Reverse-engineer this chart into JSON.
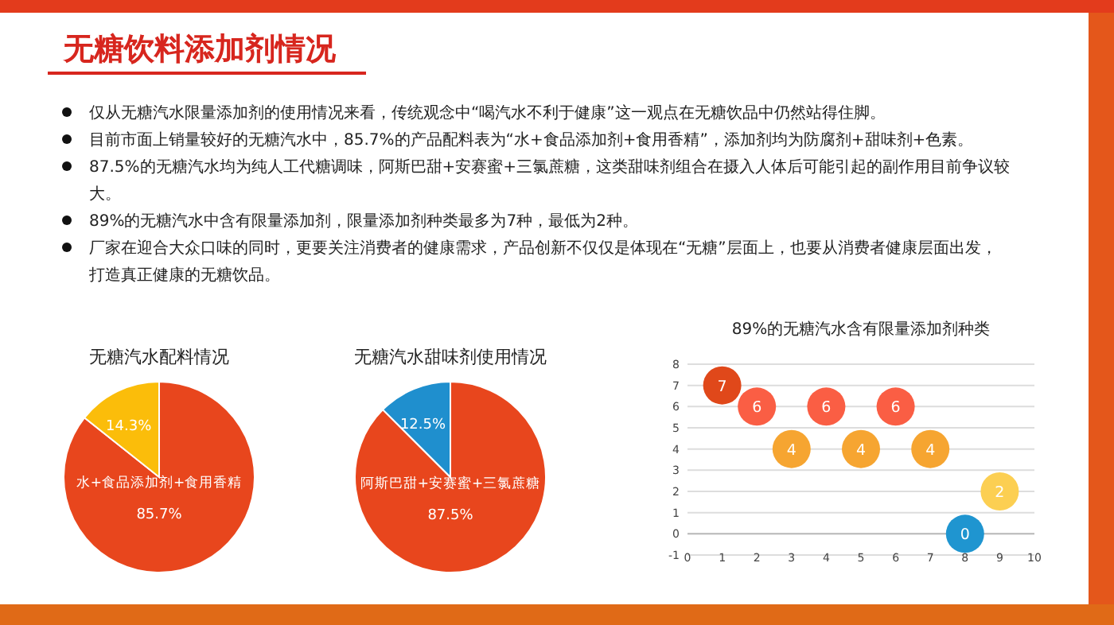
{
  "chart_data": [
    {
      "type": "other",
      "title": "无糖饮料添加剂情况",
      "annotations": [
        "仅从无糖汽水限量添加剂的使用情况来看，传统观念中“喝汽水不利于健康”这一观点在无糖饮品中仍然站得住脚。",
        "目前市面上销量较好的无糖汽水中，85.7%的产品配料表为“水+食品添加剂+食用香精”，添加剂均为防腐剂+甜味剂+色素。",
        "87.5%的无糖汽水均为纯人工代糖调味，阿斯巴甜+安赛蜜+三氯蔗糖，这类甜味剂组合在摄入人体后可能引起的副作用目前争议较大。",
        "89%的无糖汽水中含有限量添加剂，限量添加剂种类最多为7种，最低为2种。",
        "厂家在迎合大众口味的同时，更要关注消费者的健康需求，产品创新不仅仅是体现在“无糖”层面上，也要从消费者健康层面出发，打造真正健康的无糖饮品。"
      ]
    },
    {
      "type": "pie",
      "title": "无糖汽水配料情况",
      "categories": [
        "水+食品添加剂+食用香精",
        null
      ],
      "values": [
        85.7,
        14.3
      ],
      "value_labels": [
        "85.7%",
        "14.3%"
      ],
      "colors": [
        "#e8461d",
        "#fbbd0a"
      ],
      "data_labels": true
    },
    {
      "type": "pie",
      "title": "无糖汽水甜味剂使用情况",
      "categories": [
        "阿斯巴甜+安赛蜜+三氯蔗糖",
        null
      ],
      "values": [
        87.5,
        12.5
      ],
      "value_labels": [
        "87.5%",
        "12.5%"
      ],
      "colors": [
        "#e8461d",
        "#1f8fce"
      ],
      "data_labels": true
    },
    {
      "type": "bubble",
      "title": "89%的无糖汽水含有限量添加剂种类",
      "x": [
        1,
        2,
        3,
        4,
        5,
        6,
        7,
        8,
        9
      ],
      "values": [
        7,
        6,
        4,
        6,
        4,
        6,
        4,
        0,
        2
      ],
      "sizes": [
        1,
        1,
        1,
        1,
        1,
        1,
        1,
        1,
        1
      ],
      "colors": [
        "#e0481a",
        "#fa5e44",
        "#f6a531",
        "#fa5e44",
        "#f6a531",
        "#fa5e44",
        "#f6a531",
        "#1f95d0",
        "#fccf52"
      ],
      "data_labels": true,
      "xlim": [
        0,
        10
      ],
      "xticks": [
        0,
        1,
        2,
        3,
        4,
        5,
        6,
        7,
        8,
        9,
        10
      ],
      "ylim": [
        -1,
        8
      ],
      "yticks": [
        -1,
        0,
        1,
        2,
        3,
        4,
        5,
        6,
        7,
        8
      ],
      "grid": "y"
    }
  ]
}
